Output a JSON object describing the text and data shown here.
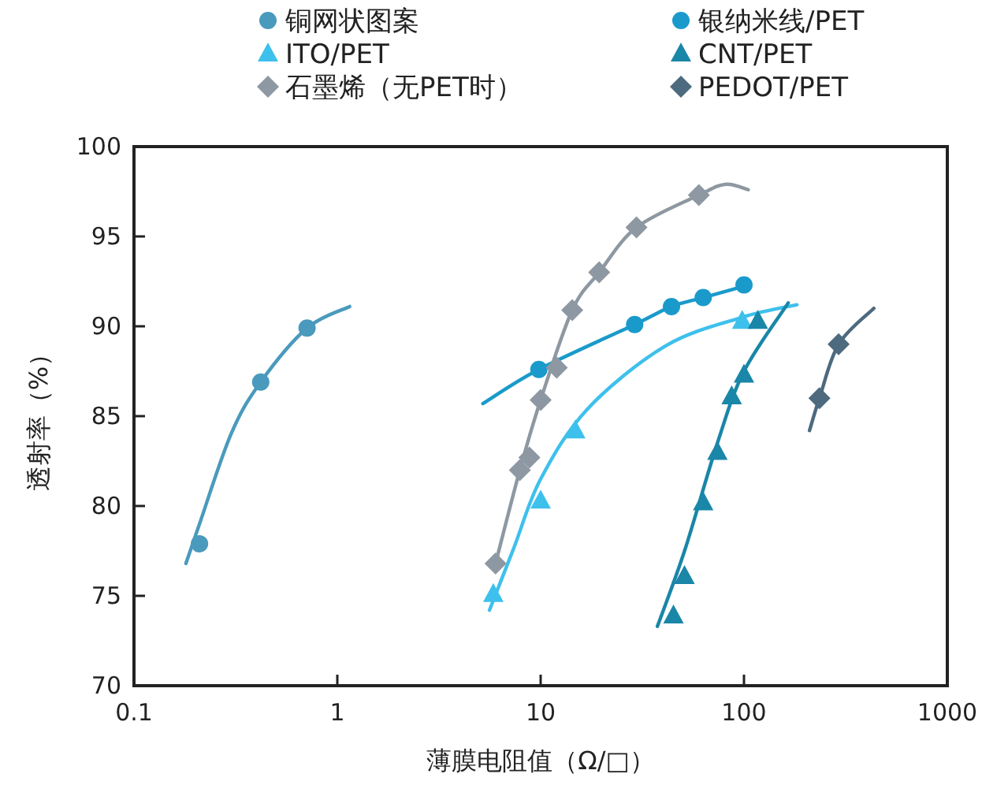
{
  "chart_data": {
    "type": "scatter",
    "xlabel": "薄膜电阻值（Ω/□）",
    "ylabel": "透射率（%）",
    "log": "x",
    "xlim": [
      0.1,
      1000
    ],
    "xticks": [
      0.1,
      1,
      10,
      100,
      1000
    ],
    "ylim": [
      70,
      100
    ],
    "yticks": [
      70,
      75,
      80,
      85,
      90,
      95,
      100
    ],
    "grid": false,
    "legend": "top",
    "series": [
      {
        "name": "铜网状图案",
        "marker": "circle",
        "color": "#4a9abd",
        "x": [
          0.21,
          0.42,
          0.71
        ],
        "values": [
          77.9,
          86.9,
          89.9
        ]
      },
      {
        "name": "银纳米线/PET",
        "marker": "circle",
        "color": "#1a9acb",
        "x": [
          9.8,
          29,
          44,
          63,
          100
        ],
        "values": [
          87.6,
          90.1,
          91.1,
          91.6,
          92.3
        ]
      },
      {
        "name": "ITO/PET",
        "marker": "triangle",
        "color": "#3ec0ec",
        "x": [
          5.85,
          10,
          14.8,
          98
        ],
        "values": [
          75.1,
          80.3,
          84.2,
          90.3
        ]
      },
      {
        "name": "CNT/PET",
        "marker": "triangle",
        "color": "#1a86a8",
        "x": [
          45,
          51,
          63,
          74,
          87,
          100,
          117
        ],
        "values": [
          73.9,
          76.1,
          80.2,
          83.0,
          86.1,
          87.3,
          90.3
        ]
      },
      {
        "name": "石墨烯（无PET时）",
        "marker": "diamond",
        "color": "#8d98a2",
        "x": [
          6.0,
          7.9,
          8.8,
          10,
          12,
          14.3,
          19.4,
          29.6,
          60
        ],
        "values": [
          76.8,
          82.0,
          82.7,
          85.9,
          87.7,
          90.9,
          93.0,
          95.5,
          97.3
        ]
      },
      {
        "name": "PEDOT/PET",
        "marker": "diamond",
        "color": "#4d6a7e",
        "x": [
          235,
          292
        ],
        "values": [
          86.0,
          89.0
        ]
      },
      {
        "type": "line",
        "marker": "none",
        "color": "#4a9abd",
        "x": [
          0.18,
          0.21,
          0.3,
          0.42,
          0.71,
          1.15
        ],
        "values": [
          76.8,
          79.0,
          84.0,
          86.9,
          89.9,
          91.1
        ]
      },
      {
        "type": "line",
        "marker": "none",
        "color": "#1a9acb",
        "x": [
          5.2,
          9.8,
          29,
          44,
          63,
          105
        ],
        "values": [
          85.7,
          87.6,
          90.1,
          91.1,
          91.6,
          92.3
        ]
      },
      {
        "type": "line",
        "marker": "none",
        "color": "#3ec0ec",
        "x": [
          5.6,
          7.4,
          10,
          17,
          41,
          98,
          182
        ],
        "values": [
          74.2,
          77.7,
          81.5,
          85.4,
          88.9,
          90.5,
          91.2
        ]
      },
      {
        "type": "line",
        "marker": "none",
        "color": "#1a86a8",
        "x": [
          37.5,
          51,
          74,
          100,
          165
        ],
        "values": [
          73.3,
          77.5,
          83.5,
          87.5,
          91.3
        ]
      },
      {
        "type": "line",
        "marker": "none",
        "color": "#8d98a2",
        "x": [
          6.0,
          7.9,
          10,
          14.3,
          19.4,
          29.6,
          60,
          81,
          105
        ],
        "values": [
          76.8,
          82.0,
          85.9,
          90.9,
          93.0,
          95.5,
          97.3,
          97.9,
          97.6
        ]
      },
      {
        "type": "line",
        "marker": "none",
        "color": "#4d6a7e",
        "x": [
          210,
          235,
          292,
          435
        ],
        "values": [
          84.2,
          86.0,
          89.0,
          91.0
        ]
      }
    ]
  }
}
